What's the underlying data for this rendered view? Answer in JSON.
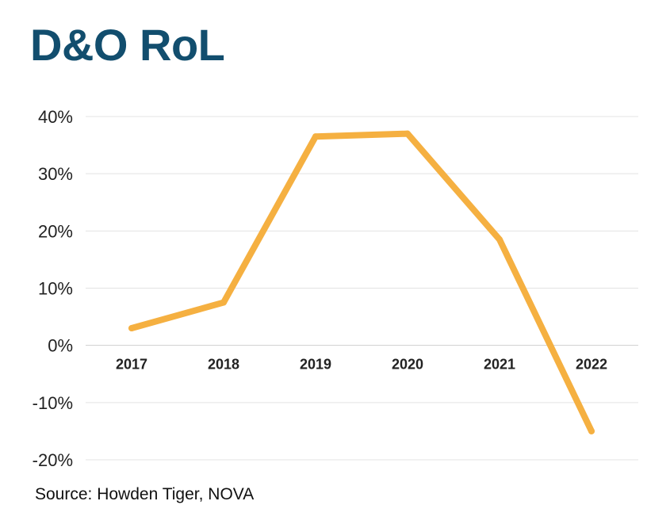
{
  "title": "D&O RoL",
  "source": "Source: Howden Tiger, NOVA",
  "chart_data": {
    "type": "line",
    "title": "D&O RoL",
    "x": [
      "2017",
      "2018",
      "2019",
      "2020",
      "2021",
      "2022"
    ],
    "series": [
      {
        "values": [
          3,
          7.5,
          36.5,
          37,
          18.5,
          -15
        ],
        "color": "#f5b041"
      }
    ],
    "ylim": [
      -20,
      40
    ],
    "yticks": [
      40,
      30,
      20,
      10,
      0,
      -10,
      -20
    ],
    "ytick_labels": [
      "40%",
      "30%",
      "20%",
      "10%",
      "0%",
      "-10%",
      "-20%"
    ],
    "grid": true,
    "legend": "none"
  }
}
